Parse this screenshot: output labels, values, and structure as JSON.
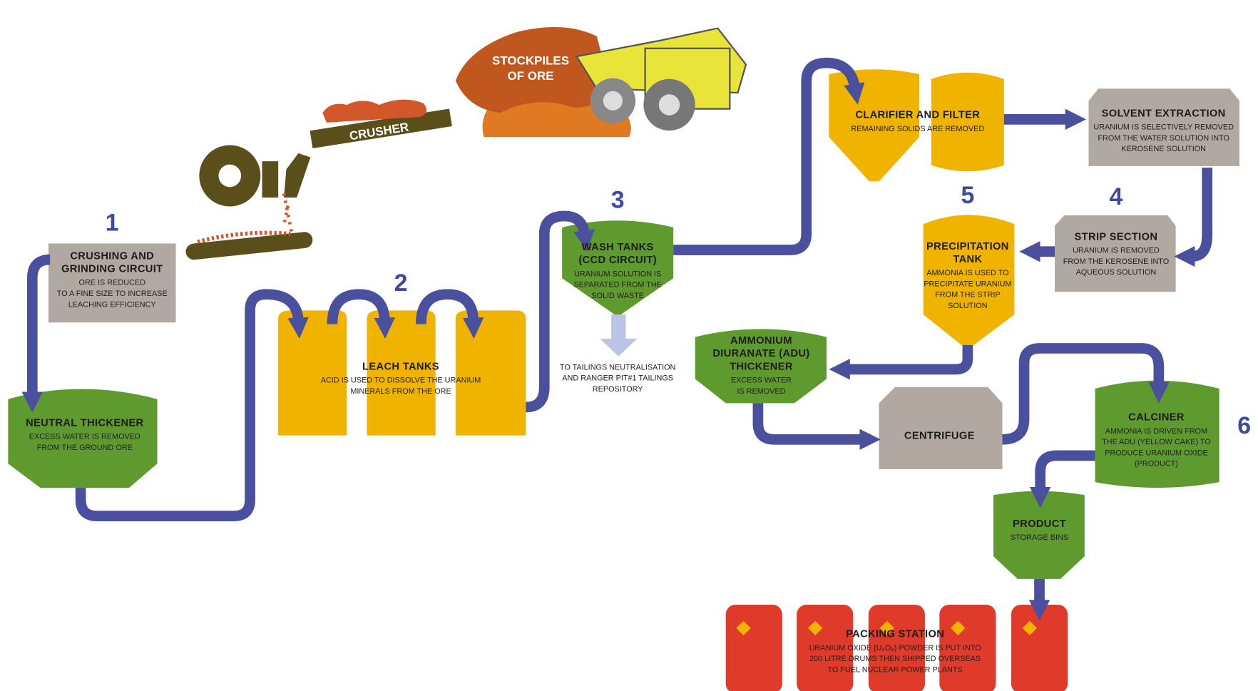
{
  "stockpile": {
    "label": [
      "STOCKPILES",
      "OF ORE"
    ]
  },
  "crusher": {
    "label": "CRUSHER"
  },
  "nodes": [
    {
      "number": "1",
      "title": [
        "CRUSHING AND",
        "GRINDING CIRCUIT"
      ],
      "description": [
        "ORE IS REDUCED",
        "TO A FINE SIZE TO INCREASE",
        "LEACHING EFFICIENCY"
      ]
    },
    {
      "title": [
        "NEUTRAL THICKENER"
      ],
      "description": [
        "EXCESS WATER IS REMOVED",
        "FROM THE GROUND ORE"
      ]
    },
    {
      "number": "2",
      "title": [
        "LEACH TANKS"
      ],
      "description": [
        "ACID IS USED TO DISSOLVE THE URANIUM",
        "MINERALS FROM THE ORE"
      ]
    },
    {
      "number": "3",
      "title": [
        "WASH TANKS",
        "(CCD CIRCUIT)"
      ],
      "description": [
        "URANIUM SOLUTION IS",
        "SEPARATED FROM THE",
        "SOLID WASTE"
      ]
    },
    {
      "description": [
        "TO TAILINGS NEUTRALISATION",
        "AND RANGER PIT#1 TAILINGS",
        "REPOSITORY"
      ]
    },
    {
      "title": [
        "CLARIFIER AND FILTER"
      ],
      "description": [
        "REMAINING SOLIDS ARE REMOVED"
      ]
    },
    {
      "title": [
        "SOLVENT EXTRACTION"
      ],
      "description": [
        "URANIUM IS SELECTIVELY REMOVED",
        "FROM THE WATER SOLUTION INTO",
        "KEROSENE SOLUTION"
      ]
    },
    {
      "number": "4",
      "title": [
        "STRIP SECTION"
      ],
      "description": [
        "URANIUM IS REMOVED",
        "FROM THE KEROSENE INTO",
        "AQUEOUS SOLUTION"
      ]
    },
    {
      "number": "5",
      "title": [
        "PRECIPITATION",
        "TANK"
      ],
      "description": [
        "AMMONIA IS USED TO",
        "PRECIPITATE URANIUM",
        "FROM THE STRIP",
        "SOLUTION"
      ]
    },
    {
      "title": [
        "AMMONIUM",
        "DIURANATE (ADU)",
        "THICKENER"
      ],
      "description": [
        "EXCESS WATER",
        "IS REMOVED"
      ]
    },
    {
      "title": [
        "CENTRIFUGE"
      ]
    },
    {
      "number": "6",
      "title": [
        "CALCINER"
      ],
      "description": [
        "AMMONIA IS DRIVEN FROM",
        "THE ADU (YELLOW CAKE) TO",
        "PRODUCE URANIUM OXIDE",
        "(PRODUCT)"
      ]
    },
    {
      "title": [
        "PRODUCT"
      ],
      "description": [
        "STORAGE BINS"
      ]
    },
    {
      "title": [
        "PACKING STATION"
      ],
      "description": [
        "URANIUM OXIDE (U₃O₈) POWDER IS PUT INTO",
        "200 LITRE DRUMS THEN SHIPPED OVERSEAS",
        "TO FUEL NUCLEAR POWER PLANTS"
      ]
    }
  ]
}
